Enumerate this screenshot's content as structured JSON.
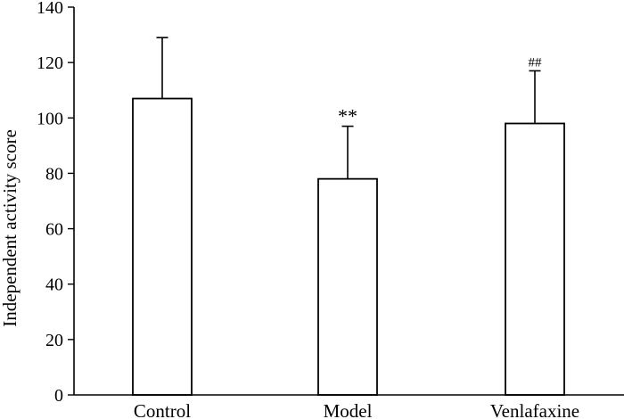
{
  "chart_data": {
    "type": "bar",
    "categories": [
      "Control",
      "Model",
      "Venlafaxine"
    ],
    "values": [
      107,
      78,
      98
    ],
    "errors": [
      22,
      19,
      19
    ],
    "annotations": [
      "",
      "**",
      "##"
    ],
    "title": "",
    "xlabel": "",
    "ylabel": "Independent activity score",
    "ylim": [
      0,
      140
    ],
    "yticks": [
      0,
      20,
      40,
      60,
      80,
      100,
      120,
      140
    ],
    "grid": false,
    "legend": "none"
  }
}
